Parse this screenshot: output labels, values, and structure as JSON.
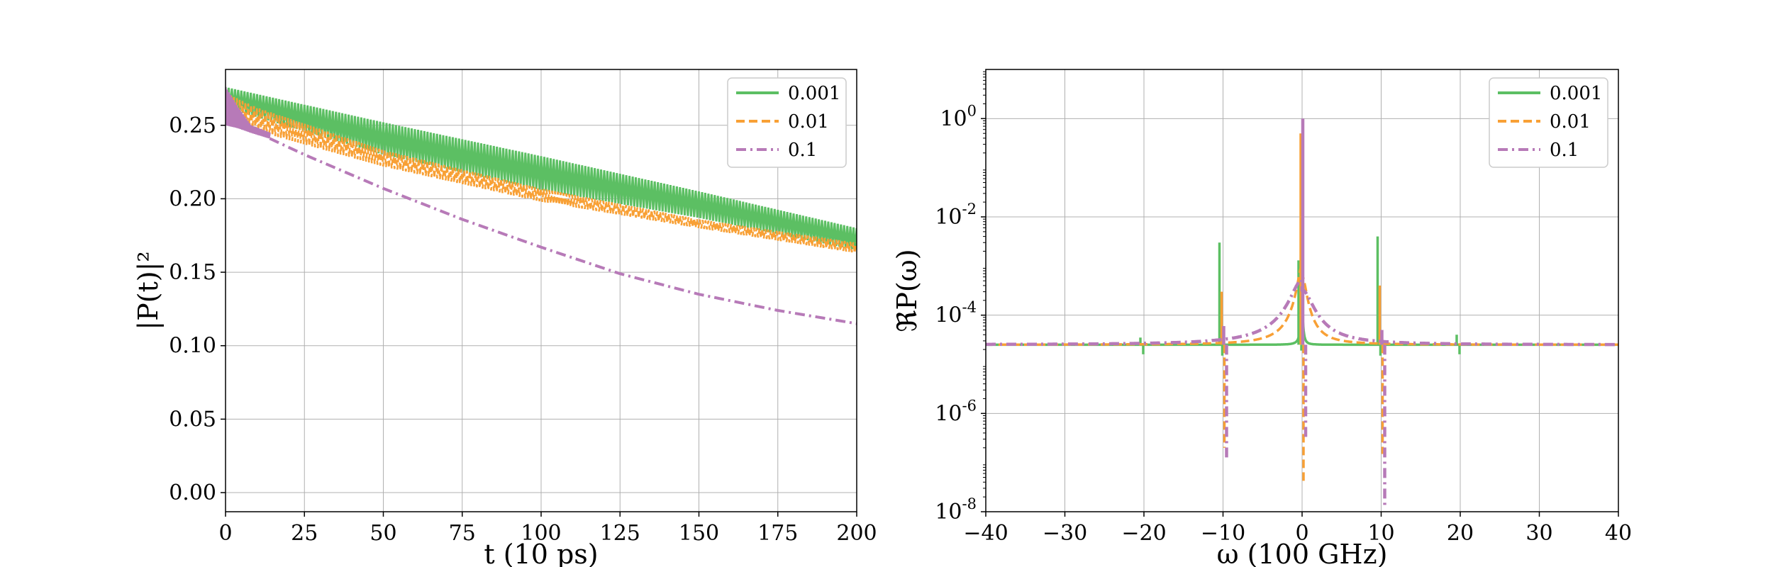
{
  "chart_data": [
    {
      "type": "line",
      "xlabel": "t (10 ps)",
      "ylabel": "|P(t)|²",
      "xlim": [
        0,
        200
      ],
      "ylim": [
        -0.013,
        0.288
      ],
      "xticks": [
        0,
        25,
        50,
        75,
        100,
        125,
        150,
        175,
        200
      ],
      "yticks": [
        0.0,
        0.05,
        0.1,
        0.15,
        0.2,
        0.25
      ],
      "ytick_labels": [
        "0.00",
        "0.05",
        "0.10",
        "0.15",
        "0.20",
        "0.25"
      ],
      "grid": true,
      "legend_position": "top-right",
      "series": [
        {
          "name": "0.001",
          "color": "#5cbf63",
          "style": "solid",
          "upper": [
            [
              0,
              0.276
            ],
            [
              50,
              0.252
            ],
            [
              100,
              0.229
            ],
            [
              150,
              0.205
            ],
            [
              200,
              0.18
            ]
          ],
          "lower": [
            [
              0,
              0.262
            ],
            [
              50,
              0.23
            ],
            [
              100,
              0.206
            ],
            [
              150,
              0.187
            ],
            [
              200,
              0.165
            ]
          ]
        },
        {
          "name": "0.01",
          "color": "#f8a035",
          "style": "dashed",
          "upper": [
            [
              0,
              0.272
            ],
            [
              10,
              0.262
            ],
            [
              50,
              0.233
            ],
            [
              100,
              0.207
            ],
            [
              150,
              0.186
            ],
            [
              200,
              0.17
            ]
          ],
          "lower": [
            [
              0,
              0.256
            ],
            [
              10,
              0.246
            ],
            [
              50,
              0.222
            ],
            [
              100,
              0.198
            ],
            [
              150,
              0.18
            ],
            [
              200,
              0.163
            ]
          ]
        },
        {
          "name": "0.1",
          "color": "#b77ab8",
          "style": "dashdot",
          "band_upper": [
            [
              0,
              0.276
            ],
            [
              4,
              0.262
            ],
            [
              8,
              0.25
            ],
            [
              14,
              0.245
            ]
          ],
          "band_lower": [
            [
              0,
              0.25
            ],
            [
              4,
              0.248
            ],
            [
              8,
              0.245
            ],
            [
              14,
              0.241
            ]
          ],
          "points": [
            [
              14,
              0.241
            ],
            [
              25,
              0.23
            ],
            [
              50,
              0.207
            ],
            [
              75,
              0.186
            ],
            [
              100,
              0.167
            ],
            [
              125,
              0.149
            ],
            [
              150,
              0.135
            ],
            [
              175,
              0.124
            ],
            [
              200,
              0.115
            ]
          ]
        }
      ]
    },
    {
      "type": "line",
      "xlabel": "ω (100 GHz)",
      "ylabel": "ℜP(ω)",
      "xlim": [
        -40,
        40
      ],
      "ylog": true,
      "ylim_exp": [
        -8,
        1.0
      ],
      "xticks": [
        -40,
        -30,
        -20,
        -10,
        0,
        10,
        20,
        30,
        40
      ],
      "xtick_labels": [
        "−40",
        "−30",
        "−20",
        "−10",
        "0",
        "10",
        "20",
        "30",
        "40"
      ],
      "yticks_exp": [
        -8,
        -6,
        -4,
        -2,
        0
      ],
      "ytick_labels": [
        "10",
        "10",
        "10",
        "10",
        "10"
      ],
      "ytick_exponents": [
        "-8",
        "-6",
        "-4",
        "-2",
        "0"
      ],
      "grid": true,
      "legend_position": "top-right",
      "baseline": 2.5e-05,
      "series": [
        {
          "name": "0.001",
          "color": "#5cbf63",
          "style": "solid",
          "width": 0.04,
          "peaks": [
            {
              "x": -20,
              "h": 3.5e-05,
              "d": 1.6e-05
            },
            {
              "x": -10,
              "h": 0.003,
              "d": 1.5e-05
            },
            {
              "x": 0,
              "h": 0.0013,
              "d": 1.9e-05,
              "tail": 0.00015
            },
            {
              "x": 10,
              "h": 0.004,
              "d": 1.5e-05
            },
            {
              "x": 20,
              "h": 4e-05,
              "d": 1.6e-05
            }
          ]
        },
        {
          "name": "0.01",
          "color": "#f8a035",
          "style": "dashed",
          "width": 0.16,
          "peaks": [
            {
              "x": -10,
              "h": 0.0003,
              "d": 2e-07
            },
            {
              "x": 0,
              "h": 0.5,
              "d": 4e-08,
              "tail": 0.001
            },
            {
              "x": 10,
              "h": 0.0004,
              "d": 1.5e-07
            }
          ]
        },
        {
          "name": "0.1",
          "color": "#b77ab8",
          "style": "dashdot",
          "width": 0.4,
          "peaks": [
            {
              "x": -10,
              "h": 6e-05,
              "d": 1.1e-07
            },
            {
              "x": 0,
              "h": 1.0,
              "d": 3e-07,
              "tail": 0.0005
            },
            {
              "x": 10,
              "h": 5e-05,
              "d": 1.2e-08
            }
          ]
        }
      ]
    }
  ]
}
